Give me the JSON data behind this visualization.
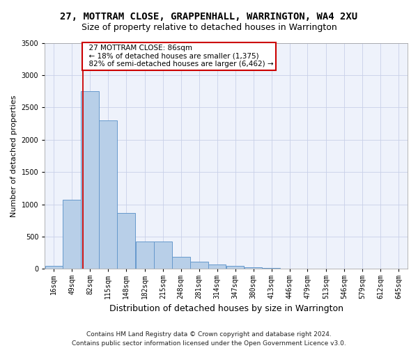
{
  "title_line1": "27, MOTTRAM CLOSE, GRAPPENHALL, WARRINGTON, WA4 2XU",
  "title_line2": "Size of property relative to detached houses in Warrington",
  "xlabel": "Distribution of detached houses by size in Warrington",
  "ylabel": "Number of detached properties",
  "footer": "Contains HM Land Registry data © Crown copyright and database right 2024.\nContains public sector information licensed under the Open Government Licence v3.0.",
  "annotation_title": "27 MOTTRAM CLOSE: 86sqm",
  "annotation_line2": "← 18% of detached houses are smaller (1,375)",
  "annotation_line3": "82% of semi-detached houses are larger (6,462) →",
  "property_size": 86,
  "bar_color": "#b8cfe8",
  "bar_edge_color": "#6699cc",
  "ref_line_color": "#cc0000",
  "annotation_box_edge": "#cc0000",
  "background_color": "#eef2fb",
  "bin_starts": [
    16,
    49,
    82,
    115,
    148,
    182,
    215,
    248,
    281,
    314,
    347,
    380,
    413,
    446,
    479,
    513,
    546,
    579,
    612,
    645
  ],
  "bin_width": 33,
  "counts": [
    50,
    1075,
    2750,
    2300,
    870,
    420,
    420,
    185,
    110,
    65,
    45,
    30,
    12,
    8,
    5,
    3,
    2,
    1,
    0,
    0
  ],
  "ylim": [
    0,
    3500
  ],
  "yticks": [
    0,
    500,
    1000,
    1500,
    2000,
    2500,
    3000,
    3500
  ],
  "grid_color": "#c8d0e8",
  "title_fontsize": 10,
  "subtitle_fontsize": 9,
  "ylabel_fontsize": 8,
  "xlabel_fontsize": 9,
  "tick_fontsize": 7,
  "annot_fontsize": 7.5,
  "footer_fontsize": 6.5
}
